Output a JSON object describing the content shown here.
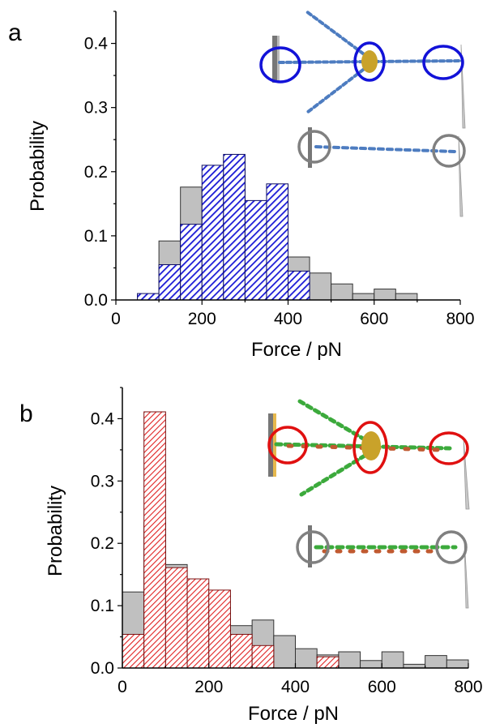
{
  "chart_data": [
    {
      "type": "bar",
      "panel_label": "a",
      "xlabel": "Force / pN",
      "ylabel": "Probability",
      "xlim": [
        0,
        800
      ],
      "ylim": [
        0,
        0.45
      ],
      "xticks": [
        "0",
        "200",
        "400",
        "600",
        "800"
      ],
      "yticks": [
        "0.0",
        "0.1",
        "0.2",
        "0.3",
        "0.4"
      ],
      "bin_width": 50,
      "grid": false,
      "legend": "none",
      "series": [
        {
          "style": "gray-solid",
          "color": "#c0c0c0",
          "x": [
            100,
            150,
            200,
            250,
            300,
            350,
            400,
            450,
            500,
            550,
            600,
            650
          ],
          "values": [
            0.092,
            0.176,
            0.176,
            0.222,
            0.149,
            0.057,
            0.067,
            0.042,
            0.025,
            0.01,
            0.017,
            0.01
          ]
        },
        {
          "style": "blue-hatched",
          "color": "#1a1ad6",
          "x": [
            50,
            100,
            150,
            200,
            250,
            300,
            350,
            400
          ],
          "values": [
            0.01,
            0.055,
            0.118,
            0.21,
            0.227,
            0.155,
            0.181,
            0.045
          ]
        }
      ]
    },
    {
      "type": "bar",
      "panel_label": "b",
      "xlabel": "Force / pN",
      "ylabel": "Probability",
      "xlim": [
        0,
        800
      ],
      "ylim": [
        0,
        0.45
      ],
      "xticks": [
        "0",
        "200",
        "400",
        "600",
        "800"
      ],
      "yticks": [
        "0.0",
        "0.1",
        "0.2",
        "0.3",
        "0.4"
      ],
      "bin_width": 50,
      "grid": false,
      "legend": "none",
      "series": [
        {
          "style": "gray-solid",
          "color": "#c0c0c0",
          "x": [
            0,
            50,
            100,
            150,
            200,
            250,
            300,
            350,
            400,
            450,
            500,
            550,
            600,
            650,
            700,
            750
          ],
          "values": [
            0.122,
            0.234,
            0.166,
            0.091,
            0.096,
            0.068,
            0.077,
            0.052,
            0.031,
            0.021,
            0.026,
            0.012,
            0.026,
            0.006,
            0.02,
            0.013
          ]
        },
        {
          "style": "red-hatched",
          "color": "#e02020",
          "x": [
            0,
            50,
            100,
            150,
            200,
            250,
            300,
            450
          ],
          "values": [
            0.054,
            0.411,
            0.161,
            0.143,
            0.125,
            0.054,
            0.036,
            0.018
          ]
        }
      ]
    }
  ]
}
